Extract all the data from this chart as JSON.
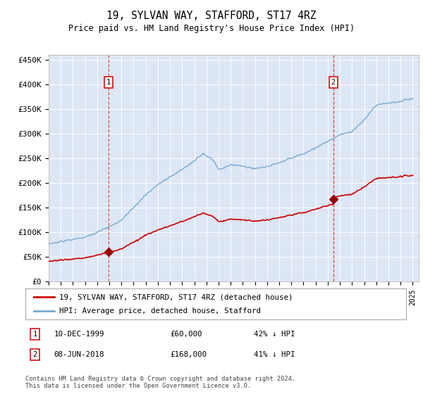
{
  "title": "19, SYLVAN WAY, STAFFORD, ST17 4RZ",
  "subtitle": "Price paid vs. HM Land Registry's House Price Index (HPI)",
  "ylabel_ticks": [
    "£0",
    "£50K",
    "£100K",
    "£150K",
    "£200K",
    "£250K",
    "£300K",
    "£350K",
    "£400K",
    "£450K"
  ],
  "ytick_values": [
    0,
    50000,
    100000,
    150000,
    200000,
    250000,
    300000,
    350000,
    400000,
    450000
  ],
  "ylim": [
    0,
    460000
  ],
  "xlim_start": 1995.0,
  "xlim_end": 2025.5,
  "transaction1": {
    "date_label": "10-DEC-1999",
    "year": 1999.95,
    "price": 60000,
    "hpi_pct": "42% ↓ HPI",
    "marker_label": "1"
  },
  "transaction2": {
    "date_label": "08-JUN-2018",
    "year": 2018.45,
    "price": 168000,
    "hpi_pct": "41% ↓ HPI",
    "marker_label": "2"
  },
  "line_color_property": "#cc0000",
  "line_color_hpi": "#7aaad0",
  "background_color": "#dce6f5",
  "legend_label_property": "19, SYLVAN WAY, STAFFORD, ST17 4RZ (detached house)",
  "legend_label_hpi": "HPI: Average price, detached house, Stafford",
  "footer": "Contains HM Land Registry data © Crown copyright and database right 2024.\nThis data is licensed under the Open Government Licence v3.0.",
  "dashed_line_color": "#cc0000",
  "marker_box_color": "#cc0000",
  "marker_dot_color": "#990000"
}
